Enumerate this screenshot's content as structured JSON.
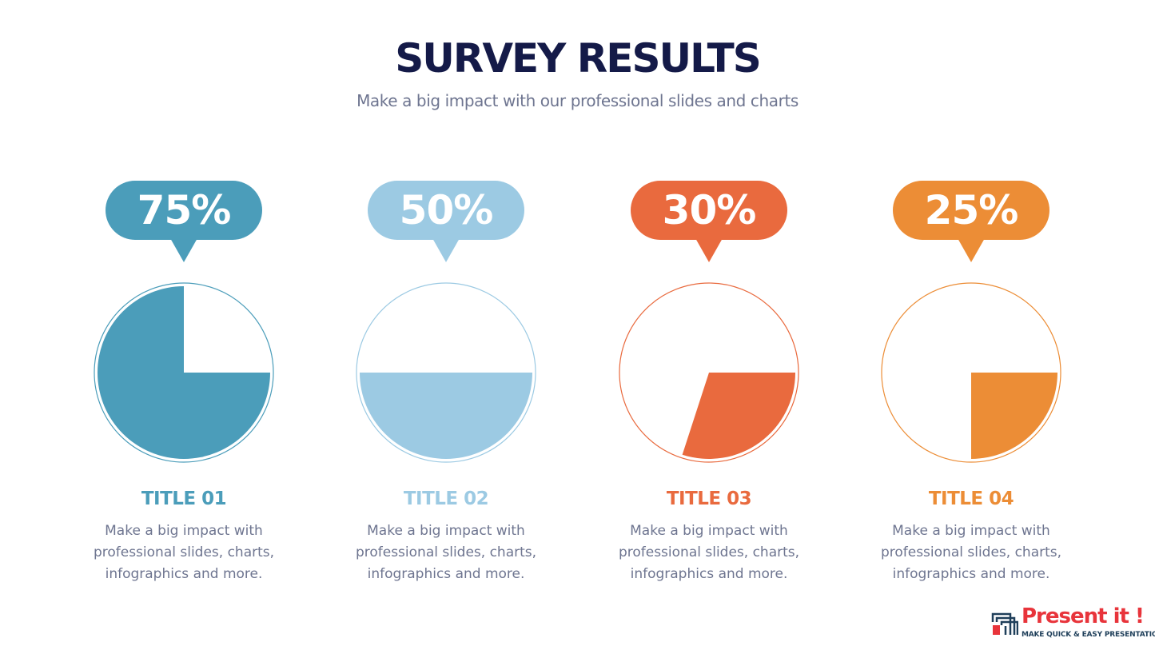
{
  "header": {
    "title": "SURVEY RESULTS",
    "subtitle": "Make a big impact with our professional slides and charts"
  },
  "cards": [
    {
      "percent_label": "75%",
      "title": "TITLE 01",
      "description": "Make a big impact with professional slides, charts, infographics and more.",
      "color": "#4b9dba"
    },
    {
      "percent_label": "50%",
      "title": "TITLE 02",
      "description": "Make a big impact with professional slides, charts, infographics and more.",
      "color": "#9ccae3"
    },
    {
      "percent_label": "30%",
      "title": "TITLE 03",
      "description": "Make a big impact with professional slides, charts, infographics and more.",
      "color": "#e96a3e"
    },
    {
      "percent_label": "25%",
      "title": "TITLE 04",
      "description": "Make a big impact with professional slides, charts, infographics and more.",
      "color": "#ec8d36"
    }
  ],
  "chart_data": [
    {
      "type": "pie",
      "categories": [
        "TITLE 01"
      ],
      "values": [
        75
      ],
      "unit": "%"
    },
    {
      "type": "pie",
      "categories": [
        "TITLE 02"
      ],
      "values": [
        50
      ],
      "unit": "%"
    },
    {
      "type": "pie",
      "categories": [
        "TITLE 03"
      ],
      "values": [
        30
      ],
      "unit": "%"
    },
    {
      "type": "pie",
      "categories": [
        "TITLE 04"
      ],
      "values": [
        25
      ],
      "unit": "%"
    }
  ],
  "logo": {
    "name": "Present it !",
    "tagline": "MAKE QUICK & EASY PRESENTATIONS",
    "icon": "present-it-logo-icon",
    "brand_color": "#e8343b"
  }
}
